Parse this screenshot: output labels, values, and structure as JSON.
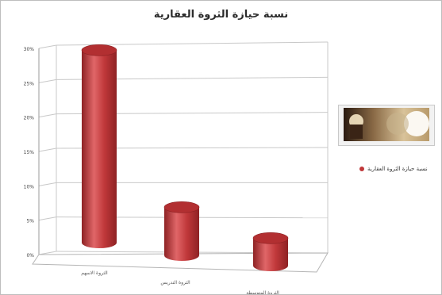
{
  "chart_data": {
    "type": "bar",
    "style": "3d-cylinder",
    "title": "نسبة حيازة الثروة العقارية",
    "categories": [
      "الثروة الاسهم",
      "الثروة التدريس",
      "الثروة المتوسطة"
    ],
    "series": [
      {
        "name": "نسبة حيازة الثروة العقارية",
        "values": [
          28,
          7,
          4
        ]
      }
    ],
    "ylim": [
      0,
      30
    ],
    "yticks": [
      "0%",
      "5%",
      "10%",
      "15%",
      "20%",
      "25%",
      "30%"
    ],
    "grid": true,
    "legend_position": "right",
    "colors": {
      "bar": "#c0383a",
      "bar_dark": "#8e2224",
      "bar_light": "#e06668",
      "grid": "#c8c8c8"
    }
  },
  "picture": {
    "name": "decorative-photo"
  }
}
